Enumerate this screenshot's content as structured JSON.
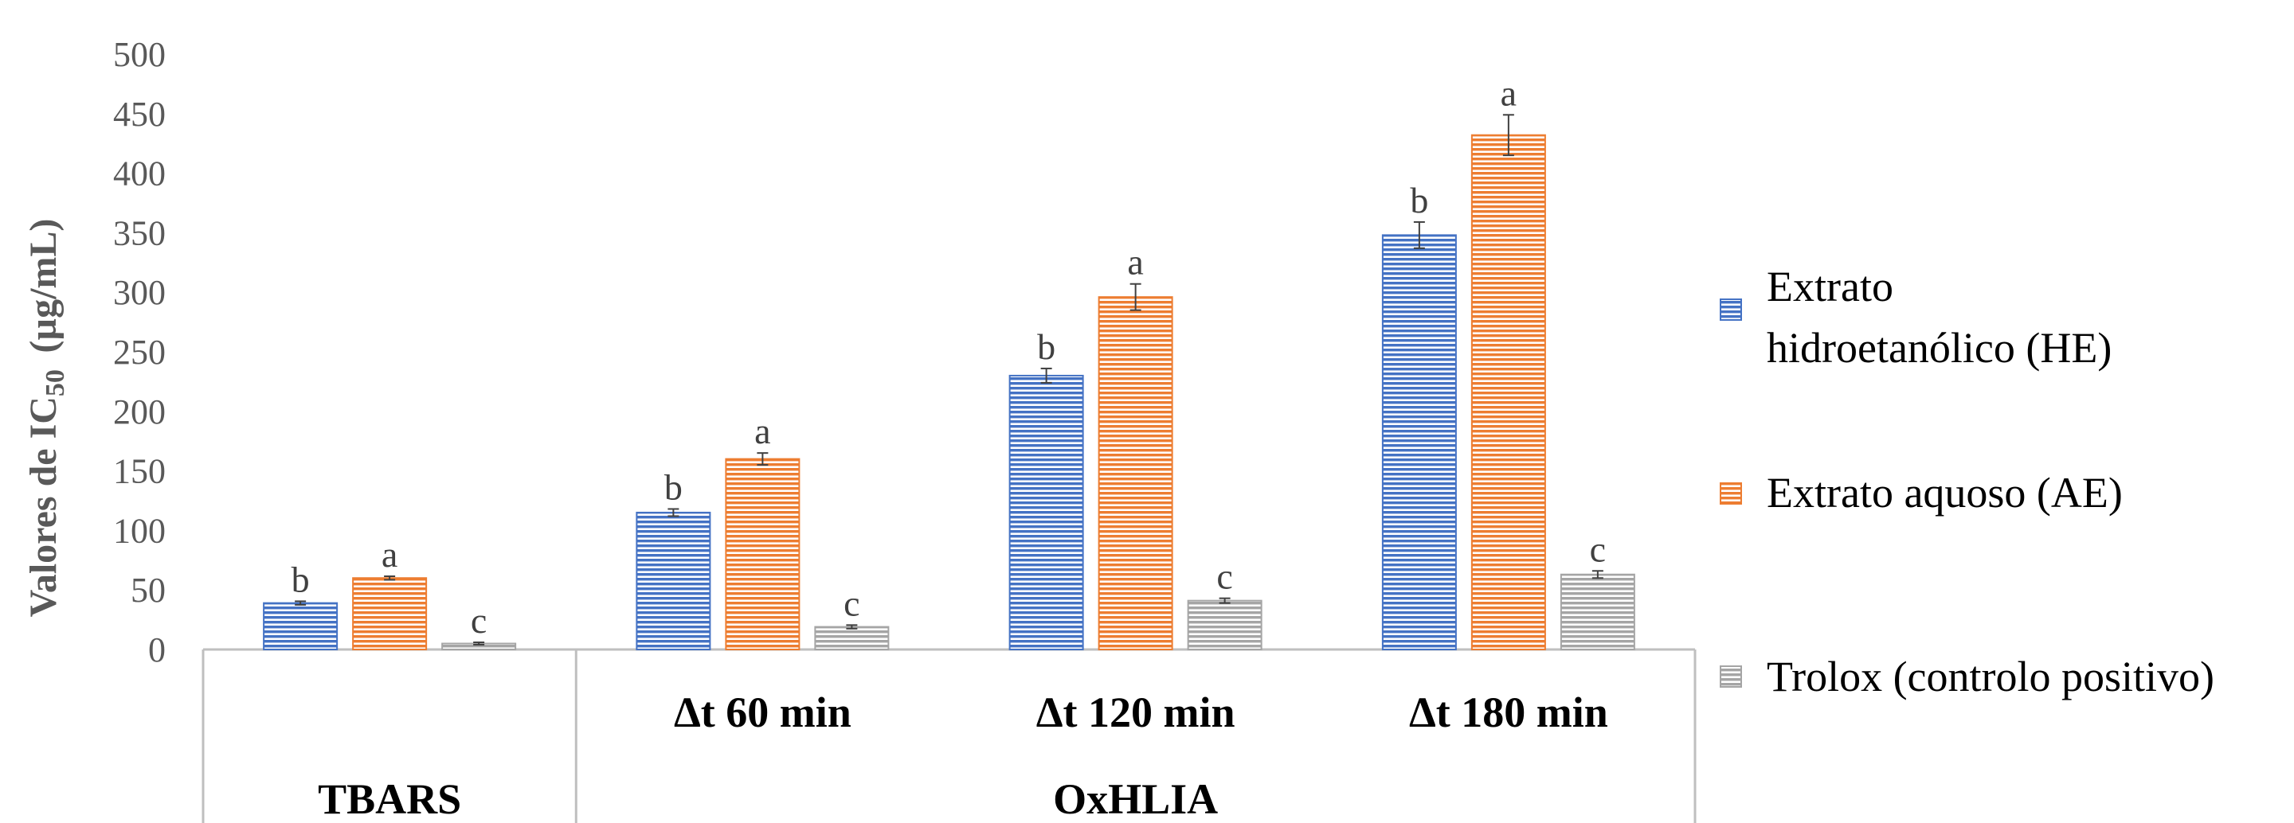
{
  "chart_data": {
    "type": "bar",
    "title": "",
    "ylabel_main": "Valores de IC",
    "ylabel_sub": "50",
    "ylabel_unit": "(µg/mL)",
    "ylim": [
      0,
      500
    ],
    "yticks": [
      0,
      50,
      100,
      150,
      200,
      250,
      300,
      350,
      400,
      450,
      500
    ],
    "grid": false,
    "legend_position": "right",
    "categories": [
      "",
      "Δt 60 min",
      "Δt 120 min",
      "Δt 180 min"
    ],
    "groups": [
      {
        "label": "TBARS",
        "span": 1
      },
      {
        "label": "OxHLIA",
        "span": 3
      }
    ],
    "series": [
      {
        "name": "Extrato hidroetanólico (HE)",
        "legend_lines": [
          "Extrato",
          "hidroetanólico (HE)"
        ],
        "color": "#4472c4",
        "values": [
          39,
          115,
          230,
          348
        ],
        "errors": [
          1.5,
          3,
          6,
          11
        ],
        "labels": [
          "b",
          "b",
          "b",
          "b"
        ]
      },
      {
        "name": "Extrato aquoso (AE)",
        "legend_lines": [
          "Extrato aquoso (AE)"
        ],
        "color": "#ed7d31",
        "values": [
          60,
          160,
          296,
          432
        ],
        "errors": [
          1.5,
          5,
          11,
          17
        ],
        "labels": [
          "a",
          "a",
          "a",
          "a"
        ]
      },
      {
        "name": "Trolox (controlo positivo)",
        "legend_lines": [
          "Trolox (controlo positivo)"
        ],
        "color": "#a5a5a5",
        "values": [
          5,
          19,
          41,
          63
        ],
        "errors": [
          1,
          1.5,
          2,
          3
        ],
        "labels": [
          "c",
          "c",
          "c",
          "c"
        ]
      }
    ]
  }
}
